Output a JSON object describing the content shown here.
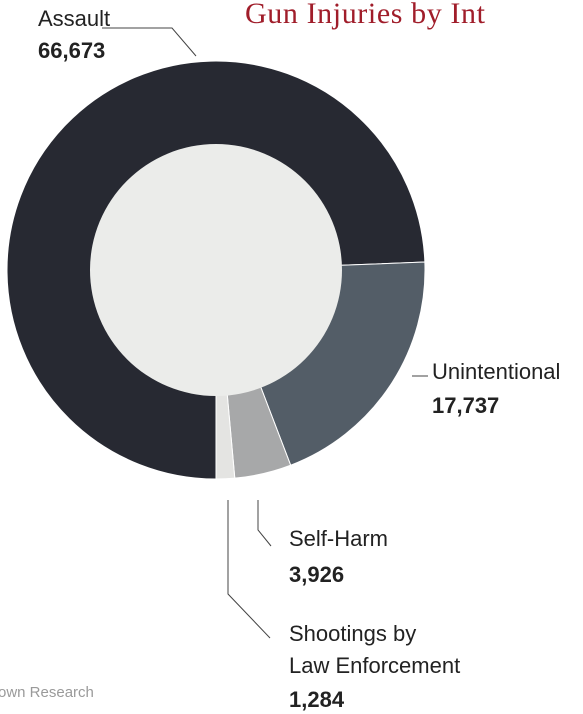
{
  "colors": {
    "title": "#a01d2a",
    "background_circle": "#ebecea",
    "leader_line": "#444444"
  },
  "chart_data": {
    "type": "pie",
    "title": "Gun Injuries by Int",
    "source": "own Research",
    "slices": [
      {
        "label": "Assault",
        "display_value": "66,673",
        "value": 66673,
        "color": "#272932"
      },
      {
        "label": "Unintentional",
        "display_value": "17,737",
        "value": 17737,
        "color": "#535d67"
      },
      {
        "label": "Self-Harm",
        "display_value": "3,926",
        "value": 3926,
        "color": "#a7a8a9"
      },
      {
        "label": "Shootings by\nLaw Enforcement",
        "label_lines": [
          "Shootings by",
          "Law Enforcement"
        ],
        "display_value": "1,284",
        "value": 1284,
        "color": "#e4e4e2"
      }
    ]
  }
}
